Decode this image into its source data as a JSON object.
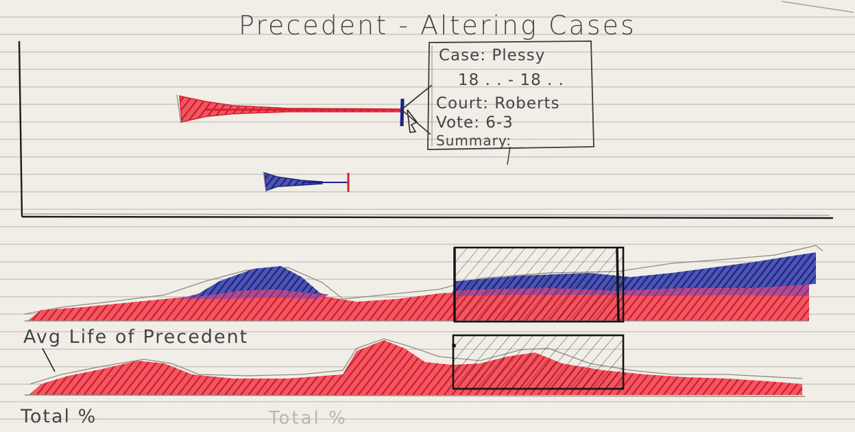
{
  "title": "Precedent - Altering Cases",
  "tooltip": {
    "case": "Case: Plessy",
    "years": "18 . .  - 18 . .",
    "court": "Court: Roberts",
    "vote": "Vote: 6-3",
    "summary": "Summary:"
  },
  "labels": {
    "avg_life": "Avg Life of Precedent",
    "total_pct": "Total %",
    "total_ghost": "Total %"
  },
  "colors": {
    "ink": "#1e1e1e",
    "pencil": "#8d8a86",
    "red": "#e02a36",
    "blue": "#1f2a8c",
    "purple": "#8a3a86",
    "paper": "#f1ede7",
    "rule": "#c9c7c4"
  }
}
